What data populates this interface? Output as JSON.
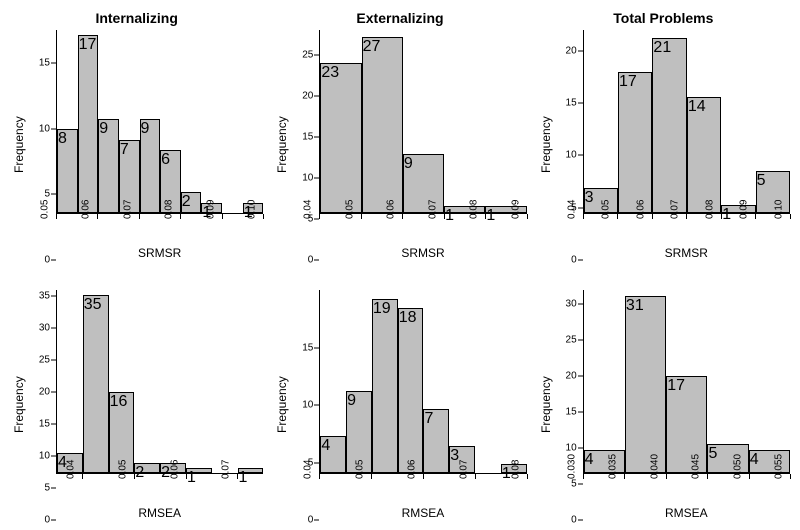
{
  "background_color": "#ffffff",
  "bar_fill": "#bfbfbf",
  "bar_border": "#000000",
  "axis_color": "#000000",
  "tick_fontsize": 10,
  "label_fontsize": 12,
  "title_fontsize": 14,
  "title_fontweight": "bold",
  "column_titles": [
    "Internalizing",
    "Externalizing",
    "Total Problems"
  ],
  "ylabel": "Frequency",
  "panels": [
    {
      "row": 0,
      "col": 0,
      "xlabel": "SRMSR",
      "xlim": [
        0.05,
        0.1
      ],
      "xticks": [
        0.05,
        0.06,
        0.07,
        0.08,
        0.09,
        0.1
      ],
      "xtick_labels": [
        "0.05",
        "0.06",
        "0.07",
        "0.08",
        "0.09",
        "0.10"
      ],
      "ylim": [
        0,
        17.5
      ],
      "yticks": [
        0,
        5,
        10,
        15
      ],
      "ytick_labels": [
        "0",
        "5",
        "10",
        "15"
      ],
      "bin_width": 0.005,
      "bins": [
        {
          "x": 0.05,
          "count": 8
        },
        {
          "x": 0.055,
          "count": 17
        },
        {
          "x": 0.06,
          "count": 9
        },
        {
          "x": 0.065,
          "count": 7
        },
        {
          "x": 0.07,
          "count": 9
        },
        {
          "x": 0.075,
          "count": 6
        },
        {
          "x": 0.08,
          "count": 2
        },
        {
          "x": 0.085,
          "count": 1
        },
        {
          "x": 0.09,
          "count": 0
        },
        {
          "x": 0.095,
          "count": 1
        }
      ]
    },
    {
      "row": 0,
      "col": 1,
      "xlabel": "SRMSR",
      "xlim": [
        0.04,
        0.09
      ],
      "xticks": [
        0.04,
        0.05,
        0.06,
        0.07,
        0.08,
        0.09
      ],
      "xtick_labels": [
        "0.04",
        "0.05",
        "0.06",
        "0.07",
        "0.08",
        "0.09"
      ],
      "ylim": [
        0,
        28
      ],
      "yticks": [
        0,
        5,
        10,
        15,
        20,
        25
      ],
      "ytick_labels": [
        "0",
        "5",
        "10",
        "15",
        "20",
        "25"
      ],
      "bin_width": 0.01,
      "bins": [
        {
          "x": 0.04,
          "count": 23
        },
        {
          "x": 0.05,
          "count": 27
        },
        {
          "x": 0.06,
          "count": 9
        },
        {
          "x": 0.07,
          "count": 1
        },
        {
          "x": 0.08,
          "count": 1
        }
      ]
    },
    {
      "row": 0,
      "col": 2,
      "xlabel": "SRMSR",
      "xlim": [
        0.04,
        0.1
      ],
      "xticks": [
        0.04,
        0.05,
        0.06,
        0.07,
        0.08,
        0.09,
        0.1
      ],
      "xtick_labels": [
        "0.04",
        "0.05",
        "0.06",
        "0.07",
        "0.08",
        "0.09",
        "0.10"
      ],
      "ylim": [
        0,
        22
      ],
      "yticks": [
        0,
        5,
        10,
        15,
        20
      ],
      "ytick_labels": [
        "0",
        "5",
        "10",
        "15",
        "20"
      ],
      "bin_width": 0.01,
      "bins": [
        {
          "x": 0.04,
          "count": 3
        },
        {
          "x": 0.05,
          "count": 17
        },
        {
          "x": 0.06,
          "count": 21
        },
        {
          "x": 0.07,
          "count": 14
        },
        {
          "x": 0.08,
          "count": 1
        },
        {
          "x": 0.09,
          "count": 5
        }
      ]
    },
    {
      "row": 1,
      "col": 0,
      "xlabel": "RMSEA",
      "xlim": [
        0.035,
        0.075
      ],
      "xticks": [
        0.04,
        0.05,
        0.06,
        0.07
      ],
      "xtick_labels": [
        "0.04",
        "0.05",
        "0.06",
        "0.07"
      ],
      "ylim": [
        0,
        36
      ],
      "yticks": [
        0,
        5,
        10,
        15,
        20,
        25,
        30,
        35
      ],
      "ytick_labels": [
        "0",
        "5",
        "10",
        "15",
        "20",
        "25",
        "30",
        "35"
      ],
      "bin_width": 0.005,
      "bins": [
        {
          "x": 0.035,
          "count": 4
        },
        {
          "x": 0.04,
          "count": 35
        },
        {
          "x": 0.045,
          "count": 16
        },
        {
          "x": 0.05,
          "count": 2
        },
        {
          "x": 0.055,
          "count": 2
        },
        {
          "x": 0.06,
          "count": 1
        },
        {
          "x": 0.065,
          "count": 0
        },
        {
          "x": 0.07,
          "count": 1
        }
      ]
    },
    {
      "row": 1,
      "col": 1,
      "xlabel": "RMSEA",
      "xlim": [
        0.04,
        0.08
      ],
      "xticks": [
        0.04,
        0.05,
        0.06,
        0.07,
        0.08
      ],
      "xtick_labels": [
        "0.04",
        "0.05",
        "0.06",
        "0.07",
        "0.08"
      ],
      "ylim": [
        0,
        20
      ],
      "yticks": [
        0,
        5,
        10,
        15
      ],
      "ytick_labels": [
        "0",
        "5",
        "10",
        "15"
      ],
      "bin_width": 0.005,
      "bins": [
        {
          "x": 0.04,
          "count": 4
        },
        {
          "x": 0.045,
          "count": 9
        },
        {
          "x": 0.05,
          "count": 19
        },
        {
          "x": 0.055,
          "count": 18
        },
        {
          "x": 0.06,
          "count": 7
        },
        {
          "x": 0.065,
          "count": 3
        },
        {
          "x": 0.07,
          "count": 0
        },
        {
          "x": 0.075,
          "count": 1
        }
      ]
    },
    {
      "row": 1,
      "col": 2,
      "xlabel": "RMSEA",
      "xlim": [
        0.03,
        0.055
      ],
      "xticks": [
        0.03,
        0.035,
        0.04,
        0.045,
        0.05,
        0.055
      ],
      "xtick_labels": [
        "0.030",
        "0.035",
        "0.040",
        "0.045",
        "0.050",
        "0.055"
      ],
      "ylim": [
        0,
        32
      ],
      "yticks": [
        0,
        5,
        10,
        15,
        20,
        25,
        30
      ],
      "ytick_labels": [
        "0",
        "5",
        "10",
        "15",
        "20",
        "25",
        "30"
      ],
      "bin_width": 0.005,
      "bins": [
        {
          "x": 0.03,
          "count": 4
        },
        {
          "x": 0.035,
          "count": 31
        },
        {
          "x": 0.04,
          "count": 17
        },
        {
          "x": 0.045,
          "count": 5
        },
        {
          "x": 0.05,
          "count": 4
        }
      ]
    }
  ]
}
